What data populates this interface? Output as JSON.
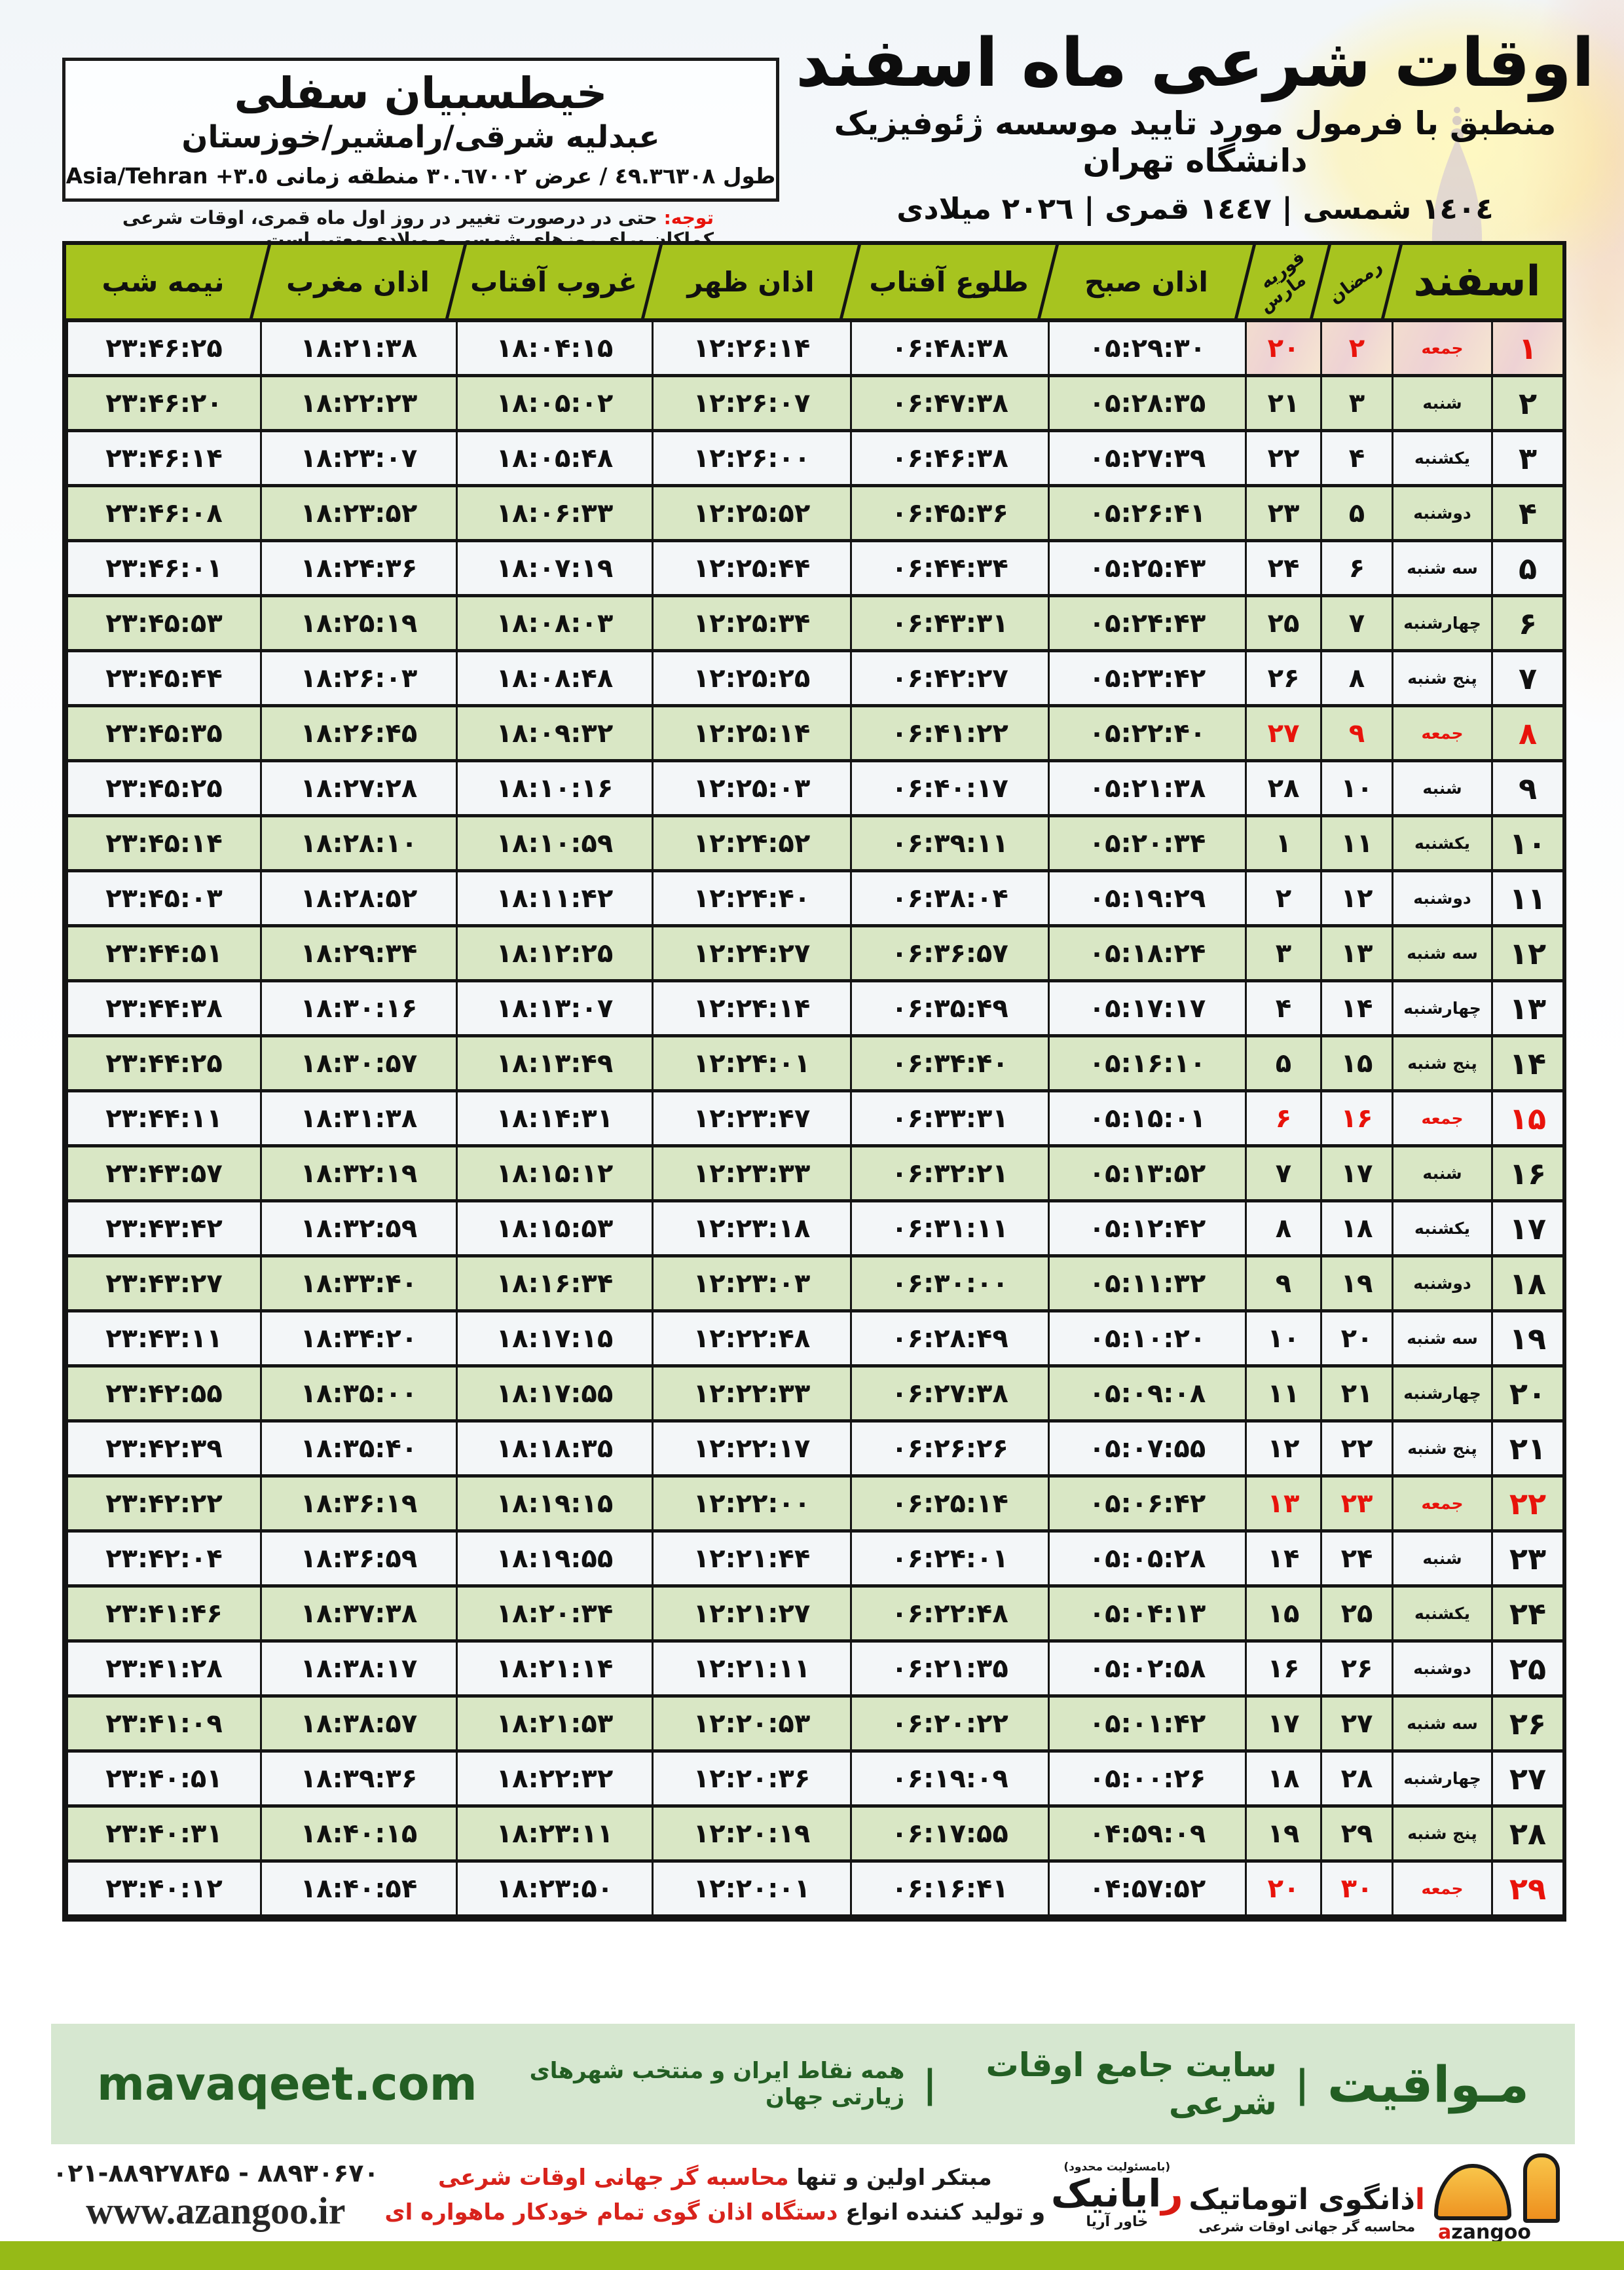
{
  "location_box": {
    "name": "خیطسبیان سفلی",
    "region": "عبدلیه شرقی/رامشیر/خوزستان",
    "coords_label": "طول ٤٩.٣٦٣٠٨ / عرض ٣٠.٦٧٠٠٢ منطقه زمانی",
    "timezone_offset": "+٣.٥",
    "timezone_name": "Asia/Tehran"
  },
  "header": {
    "title": "اوقات شرعی ماه اسفند",
    "subtitle": "منطبق با فرمول مورد تایید موسسه ژئوفیزیک دانشگاه تهران",
    "years": "١٤٠٤ شمسی | ١٤٤٧ قمری | ٢٠٢٦ میلادی"
  },
  "note": {
    "label": "توجه:",
    "text": " حتی در درصورت تغییر در روز اول ماه قمری، اوقات شرعی کماکان برای روزهای شمسی و میلادی معتبر است."
  },
  "table": {
    "columns": [
      {
        "key": "day",
        "label": "اسفند"
      },
      {
        "key": "weekday",
        "label": ""
      },
      {
        "key": "ramadan",
        "label": "رمضان"
      },
      {
        "key": "feb_mar",
        "label": "فوریه",
        "label2": "مارس"
      },
      {
        "key": "azan_sobh",
        "label": "اذان صبح"
      },
      {
        "key": "tolu_aftab",
        "label": "طلوع آفتاب"
      },
      {
        "key": "azan_zohr",
        "label": "اذان ظهر"
      },
      {
        "key": "ghorub_aftab",
        "label": "غروب آفتاب"
      },
      {
        "key": "azan_maghreb",
        "label": "اذان مغرب"
      },
      {
        "key": "nime_shab",
        "label": "نیمه شب"
      }
    ],
    "rows": [
      {
        "day": "۱",
        "weekday": "جمعه",
        "ramadan": "۲",
        "feb": "۲۰",
        "sobh": "۰۵:۲۹:۳۰",
        "tolu": "۰۶:۴۸:۳۸",
        "zohr": "۱۲:۲۶:۱۴",
        "ghorub": "۱۸:۰۴:۱۵",
        "maghreb": "۱۸:۲۱:۳۸",
        "nimeshab": "۲۳:۴۶:۲۵",
        "holiday": true
      },
      {
        "day": "۲",
        "weekday": "شنبه",
        "ramadan": "۳",
        "feb": "۲۱",
        "sobh": "۰۵:۲۸:۳۵",
        "tolu": "۰۶:۴۷:۳۸",
        "zohr": "۱۲:۲۶:۰۷",
        "ghorub": "۱۸:۰۵:۰۲",
        "maghreb": "۱۸:۲۲:۲۳",
        "nimeshab": "۲۳:۴۶:۲۰",
        "holiday": false
      },
      {
        "day": "۳",
        "weekday": "یکشنبه",
        "ramadan": "۴",
        "feb": "۲۲",
        "sobh": "۰۵:۲۷:۳۹",
        "tolu": "۰۶:۴۶:۳۸",
        "zohr": "۱۲:۲۶:۰۰",
        "ghorub": "۱۸:۰۵:۴۸",
        "maghreb": "۱۸:۲۳:۰۷",
        "nimeshab": "۲۳:۴۶:۱۴",
        "holiday": false
      },
      {
        "day": "۴",
        "weekday": "دوشنبه",
        "ramadan": "۵",
        "feb": "۲۳",
        "sobh": "۰۵:۲۶:۴۱",
        "tolu": "۰۶:۴۵:۳۶",
        "zohr": "۱۲:۲۵:۵۲",
        "ghorub": "۱۸:۰۶:۳۳",
        "maghreb": "۱۸:۲۳:۵۲",
        "nimeshab": "۲۳:۴۶:۰۸",
        "holiday": false
      },
      {
        "day": "۵",
        "weekday": "سه شنبه",
        "ramadan": "۶",
        "feb": "۲۴",
        "sobh": "۰۵:۲۵:۴۳",
        "tolu": "۰۶:۴۴:۳۴",
        "zohr": "۱۲:۲۵:۴۴",
        "ghorub": "۱۸:۰۷:۱۹",
        "maghreb": "۱۸:۲۴:۳۶",
        "nimeshab": "۲۳:۴۶:۰۱",
        "holiday": false
      },
      {
        "day": "۶",
        "weekday": "چهارشنبه",
        "ramadan": "۷",
        "feb": "۲۵",
        "sobh": "۰۵:۲۴:۴۳",
        "tolu": "۰۶:۴۳:۳۱",
        "zohr": "۱۲:۲۵:۳۴",
        "ghorub": "۱۸:۰۸:۰۳",
        "maghreb": "۱۸:۲۵:۱۹",
        "nimeshab": "۲۳:۴۵:۵۳",
        "holiday": false
      },
      {
        "day": "۷",
        "weekday": "پنج شنبه",
        "ramadan": "۸",
        "feb": "۲۶",
        "sobh": "۰۵:۲۳:۴۲",
        "tolu": "۰۶:۴۲:۲۷",
        "zohr": "۱۲:۲۵:۲۵",
        "ghorub": "۱۸:۰۸:۴۸",
        "maghreb": "۱۸:۲۶:۰۳",
        "nimeshab": "۲۳:۴۵:۴۴",
        "holiday": false
      },
      {
        "day": "۸",
        "weekday": "جمعه",
        "ramadan": "۹",
        "feb": "۲۷",
        "sobh": "۰۵:۲۲:۴۰",
        "tolu": "۰۶:۴۱:۲۲",
        "zohr": "۱۲:۲۵:۱۴",
        "ghorub": "۱۸:۰۹:۳۲",
        "maghreb": "۱۸:۲۶:۴۵",
        "nimeshab": "۲۳:۴۵:۳۵",
        "holiday": true
      },
      {
        "day": "۹",
        "weekday": "شنبه",
        "ramadan": "۱۰",
        "feb": "۲۸",
        "sobh": "۰۵:۲۱:۳۸",
        "tolu": "۰۶:۴۰:۱۷",
        "zohr": "۱۲:۲۵:۰۳",
        "ghorub": "۱۸:۱۰:۱۶",
        "maghreb": "۱۸:۲۷:۲۸",
        "nimeshab": "۲۳:۴۵:۲۵",
        "holiday": false
      },
      {
        "day": "۱۰",
        "weekday": "یکشنبه",
        "ramadan": "۱۱",
        "feb": "۱",
        "sobh": "۰۵:۲۰:۳۴",
        "tolu": "۰۶:۳۹:۱۱",
        "zohr": "۱۲:۲۴:۵۲",
        "ghorub": "۱۸:۱۰:۵۹",
        "maghreb": "۱۸:۲۸:۱۰",
        "nimeshab": "۲۳:۴۵:۱۴",
        "holiday": false
      },
      {
        "day": "۱۱",
        "weekday": "دوشنبه",
        "ramadan": "۱۲",
        "feb": "۲",
        "sobh": "۰۵:۱۹:۲۹",
        "tolu": "۰۶:۳۸:۰۴",
        "zohr": "۱۲:۲۴:۴۰",
        "ghorub": "۱۸:۱۱:۴۲",
        "maghreb": "۱۸:۲۸:۵۲",
        "nimeshab": "۲۳:۴۵:۰۳",
        "holiday": false
      },
      {
        "day": "۱۲",
        "weekday": "سه شنبه",
        "ramadan": "۱۳",
        "feb": "۳",
        "sobh": "۰۵:۱۸:۲۴",
        "tolu": "۰۶:۳۶:۵۷",
        "zohr": "۱۲:۲۴:۲۷",
        "ghorub": "۱۸:۱۲:۲۵",
        "maghreb": "۱۸:۲۹:۳۴",
        "nimeshab": "۲۳:۴۴:۵۱",
        "holiday": false
      },
      {
        "day": "۱۳",
        "weekday": "چهارشنبه",
        "ramadan": "۱۴",
        "feb": "۴",
        "sobh": "۰۵:۱۷:۱۷",
        "tolu": "۰۶:۳۵:۴۹",
        "zohr": "۱۲:۲۴:۱۴",
        "ghorub": "۱۸:۱۳:۰۷",
        "maghreb": "۱۸:۳۰:۱۶",
        "nimeshab": "۲۳:۴۴:۳۸",
        "holiday": false
      },
      {
        "day": "۱۴",
        "weekday": "پنج شنبه",
        "ramadan": "۱۵",
        "feb": "۵",
        "sobh": "۰۵:۱۶:۱۰",
        "tolu": "۰۶:۳۴:۴۰",
        "zohr": "۱۲:۲۴:۰۱",
        "ghorub": "۱۸:۱۳:۴۹",
        "maghreb": "۱۸:۳۰:۵۷",
        "nimeshab": "۲۳:۴۴:۲۵",
        "holiday": false
      },
      {
        "day": "۱۵",
        "weekday": "جمعه",
        "ramadan": "۱۶",
        "feb": "۶",
        "sobh": "۰۵:۱۵:۰۱",
        "tolu": "۰۶:۳۳:۳۱",
        "zohr": "۱۲:۲۳:۴۷",
        "ghorub": "۱۸:۱۴:۳۱",
        "maghreb": "۱۸:۳۱:۳۸",
        "nimeshab": "۲۳:۴۴:۱۱",
        "holiday": true
      },
      {
        "day": "۱۶",
        "weekday": "شنبه",
        "ramadan": "۱۷",
        "feb": "۷",
        "sobh": "۰۵:۱۳:۵۲",
        "tolu": "۰۶:۳۲:۲۱",
        "zohr": "۱۲:۲۳:۳۳",
        "ghorub": "۱۸:۱۵:۱۲",
        "maghreb": "۱۸:۳۲:۱۹",
        "nimeshab": "۲۳:۴۳:۵۷",
        "holiday": false
      },
      {
        "day": "۱۷",
        "weekday": "یکشنبه",
        "ramadan": "۱۸",
        "feb": "۸",
        "sobh": "۰۵:۱۲:۴۲",
        "tolu": "۰۶:۳۱:۱۱",
        "zohr": "۱۲:۲۳:۱۸",
        "ghorub": "۱۸:۱۵:۵۳",
        "maghreb": "۱۸:۳۲:۵۹",
        "nimeshab": "۲۳:۴۳:۴۲",
        "holiday": false
      },
      {
        "day": "۱۸",
        "weekday": "دوشنبه",
        "ramadan": "۱۹",
        "feb": "۹",
        "sobh": "۰۵:۱۱:۳۲",
        "tolu": "۰۶:۳۰:۰۰",
        "zohr": "۱۲:۲۳:۰۳",
        "ghorub": "۱۸:۱۶:۳۴",
        "maghreb": "۱۸:۳۳:۴۰",
        "nimeshab": "۲۳:۴۳:۲۷",
        "holiday": false
      },
      {
        "day": "۱۹",
        "weekday": "سه شنبه",
        "ramadan": "۲۰",
        "feb": "۱۰",
        "sobh": "۰۵:۱۰:۲۰",
        "tolu": "۰۶:۲۸:۴۹",
        "zohr": "۱۲:۲۲:۴۸",
        "ghorub": "۱۸:۱۷:۱۵",
        "maghreb": "۱۸:۳۴:۲۰",
        "nimeshab": "۲۳:۴۳:۱۱",
        "holiday": false
      },
      {
        "day": "۲۰",
        "weekday": "چهارشنبه",
        "ramadan": "۲۱",
        "feb": "۱۱",
        "sobh": "۰۵:۰۹:۰۸",
        "tolu": "۰۶:۲۷:۳۸",
        "zohr": "۱۲:۲۲:۳۳",
        "ghorub": "۱۸:۱۷:۵۵",
        "maghreb": "۱۸:۳۵:۰۰",
        "nimeshab": "۲۳:۴۲:۵۵",
        "holiday": false
      },
      {
        "day": "۲۱",
        "weekday": "پنج شنبه",
        "ramadan": "۲۲",
        "feb": "۱۲",
        "sobh": "۰۵:۰۷:۵۵",
        "tolu": "۰۶:۲۶:۲۶",
        "zohr": "۱۲:۲۲:۱۷",
        "ghorub": "۱۸:۱۸:۳۵",
        "maghreb": "۱۸:۳۵:۴۰",
        "nimeshab": "۲۳:۴۲:۳۹",
        "holiday": false
      },
      {
        "day": "۲۲",
        "weekday": "جمعه",
        "ramadan": "۲۳",
        "feb": "۱۳",
        "sobh": "۰۵:۰۶:۴۲",
        "tolu": "۰۶:۲۵:۱۴",
        "zohr": "۱۲:۲۲:۰۰",
        "ghorub": "۱۸:۱۹:۱۵",
        "maghreb": "۱۸:۳۶:۱۹",
        "nimeshab": "۲۳:۴۲:۲۲",
        "holiday": true
      },
      {
        "day": "۲۳",
        "weekday": "شنبه",
        "ramadan": "۲۴",
        "feb": "۱۴",
        "sobh": "۰۵:۰۵:۲۸",
        "tolu": "۰۶:۲۴:۰۱",
        "zohr": "۱۲:۲۱:۴۴",
        "ghorub": "۱۸:۱۹:۵۵",
        "maghreb": "۱۸:۳۶:۵۹",
        "nimeshab": "۲۳:۴۲:۰۴",
        "holiday": false
      },
      {
        "day": "۲۴",
        "weekday": "یکشنبه",
        "ramadan": "۲۵",
        "feb": "۱۵",
        "sobh": "۰۵:۰۴:۱۳",
        "tolu": "۰۶:۲۲:۴۸",
        "zohr": "۱۲:۲۱:۲۷",
        "ghorub": "۱۸:۲۰:۳۴",
        "maghreb": "۱۸:۳۷:۳۸",
        "nimeshab": "۲۳:۴۱:۴۶",
        "holiday": false
      },
      {
        "day": "۲۵",
        "weekday": "دوشنبه",
        "ramadan": "۲۶",
        "feb": "۱۶",
        "sobh": "۰۵:۰۲:۵۸",
        "tolu": "۰۶:۲۱:۳۵",
        "zohr": "۱۲:۲۱:۱۱",
        "ghorub": "۱۸:۲۱:۱۴",
        "maghreb": "۱۸:۳۸:۱۷",
        "nimeshab": "۲۳:۴۱:۲۸",
        "holiday": false
      },
      {
        "day": "۲۶",
        "weekday": "سه شنبه",
        "ramadan": "۲۷",
        "feb": "۱۷",
        "sobh": "۰۵:۰۱:۴۲",
        "tolu": "۰۶:۲۰:۲۲",
        "zohr": "۱۲:۲۰:۵۳",
        "ghorub": "۱۸:۲۱:۵۳",
        "maghreb": "۱۸:۳۸:۵۷",
        "nimeshab": "۲۳:۴۱:۰۹",
        "holiday": false
      },
      {
        "day": "۲۷",
        "weekday": "چهارشنبه",
        "ramadan": "۲۸",
        "feb": "۱۸",
        "sobh": "۰۵:۰۰:۲۶",
        "tolu": "۰۶:۱۹:۰۹",
        "zohr": "۱۲:۲۰:۳۶",
        "ghorub": "۱۸:۲۲:۳۲",
        "maghreb": "۱۸:۳۹:۳۶",
        "nimeshab": "۲۳:۴۰:۵۱",
        "holiday": false
      },
      {
        "day": "۲۸",
        "weekday": "پنج شنبه",
        "ramadan": "۲۹",
        "feb": "۱۹",
        "sobh": "۰۴:۵۹:۰۹",
        "tolu": "۰۶:۱۷:۵۵",
        "zohr": "۱۲:۲۰:۱۹",
        "ghorub": "۱۸:۲۳:۱۱",
        "maghreb": "۱۸:۴۰:۱۵",
        "nimeshab": "۲۳:۴۰:۳۱",
        "holiday": false
      },
      {
        "day": "۲۹",
        "weekday": "جمعه",
        "ramadan": "۳۰",
        "feb": "۲۰",
        "sobh": "۰۴:۵۷:۵۲",
        "tolu": "۰۶:۱۶:۴۱",
        "zohr": "۱۲:۲۰:۰۱",
        "ghorub": "۱۸:۲۳:۵۰",
        "maghreb": "۱۸:۴۰:۵۴",
        "nimeshab": "۲۳:۴۰:۱۲",
        "holiday": true
      }
    ]
  },
  "mavaqeet": {
    "brand": "مـواقیت",
    "sep": "|",
    "desc1": "سایت جامع اوقات شرعی",
    "desc2": "همه نقاط ایران و منتخب شهرهای زیارتی جهان",
    "site": "mavaqeet.com"
  },
  "bottom": {
    "phones": "۰۲۱-۸۸۹۲۷۸۴۵ - ۸۸۹۳۰۶۷۰",
    "site": "www.azangoo.ir",
    "line1_black": "مبتکر اولین و تنها ",
    "line1_red": "محاسبه گر جهانی اوقات شرعی",
    "line2_black": "و تولید کننده انواع ",
    "line2_red": "دستگاه اذان گوی تمام خودکار ماهواره ای",
    "rayanik_note": "(بامسئولیت محدود)",
    "rayanik_first": "ر",
    "rayanik_rest": "ایانیک",
    "rayanik_sub": "خاور آریا",
    "azangoo_first": "ا",
    "azangoo_rest": "ذانگوی اتوماتیک",
    "azangoo_sub": "محاسبه گر جهانی اوقات شرعی",
    "azangoo_latin_first": "a",
    "azangoo_latin_rest": "zangoo"
  },
  "colors": {
    "header_green": "#a7c41f",
    "row_green": "#d9e7c5",
    "row_white": "#f3f6f8",
    "holiday_red": "#e8130b",
    "footer_green_bg": "#d6e7d0",
    "footer_green_text": "#235e23",
    "bottom_strip": "#96ba17"
  }
}
